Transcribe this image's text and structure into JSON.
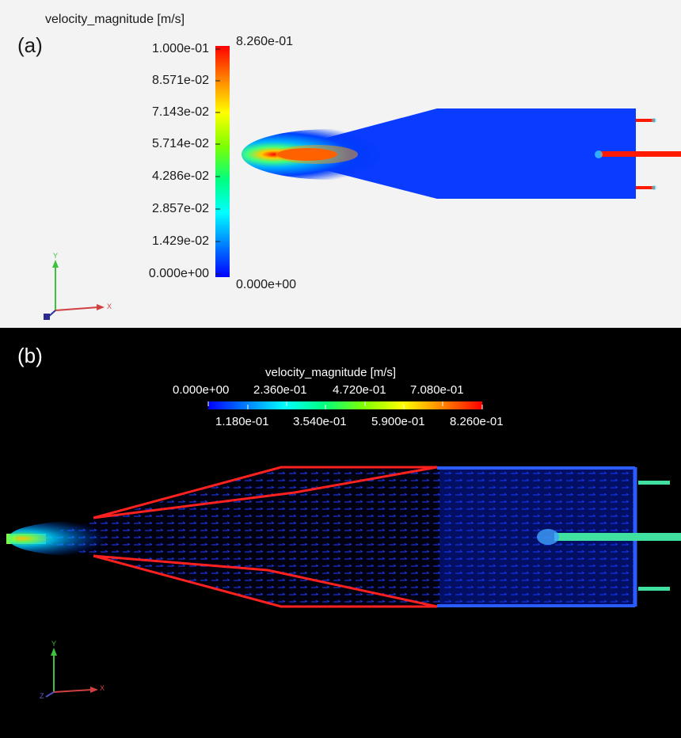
{
  "panel_a": {
    "label": "(a)",
    "legend_title": "velocity_magnitude [m/s]",
    "scale_ticks": [
      "1.000e-01",
      "8.571e-02",
      "7.143e-02",
      "5.714e-02",
      "4.286e-02",
      "2.857e-02",
      "1.429e-02",
      "0.000e+00"
    ],
    "range_max": "8.260e-01",
    "range_min": "0.000e+00",
    "axis_y": "Y",
    "axis_x": "X"
  },
  "panel_b": {
    "label": "(b)",
    "legend_title": "velocity_magnitude [m/s]",
    "ticks_top": [
      "0.000e+00",
      "2.360e-01",
      "4.720e-01",
      "7.080e-01"
    ],
    "ticks_bottom": [
      "1.180e-01",
      "3.540e-01",
      "5.900e-01",
      "8.260e-01"
    ],
    "axis_y": "Y",
    "axis_x": "X",
    "axis_z": "Z"
  },
  "colors": {
    "colormap": [
      "#0000ff",
      "#0080ff",
      "#00ffff",
      "#00ff80",
      "#80ff00",
      "#ffff00",
      "#ff8000",
      "#ff0000"
    ],
    "wall_outline": "#ff2020",
    "panel_a_bg": "#f3f3f3",
    "panel_b_bg": "#000000"
  }
}
